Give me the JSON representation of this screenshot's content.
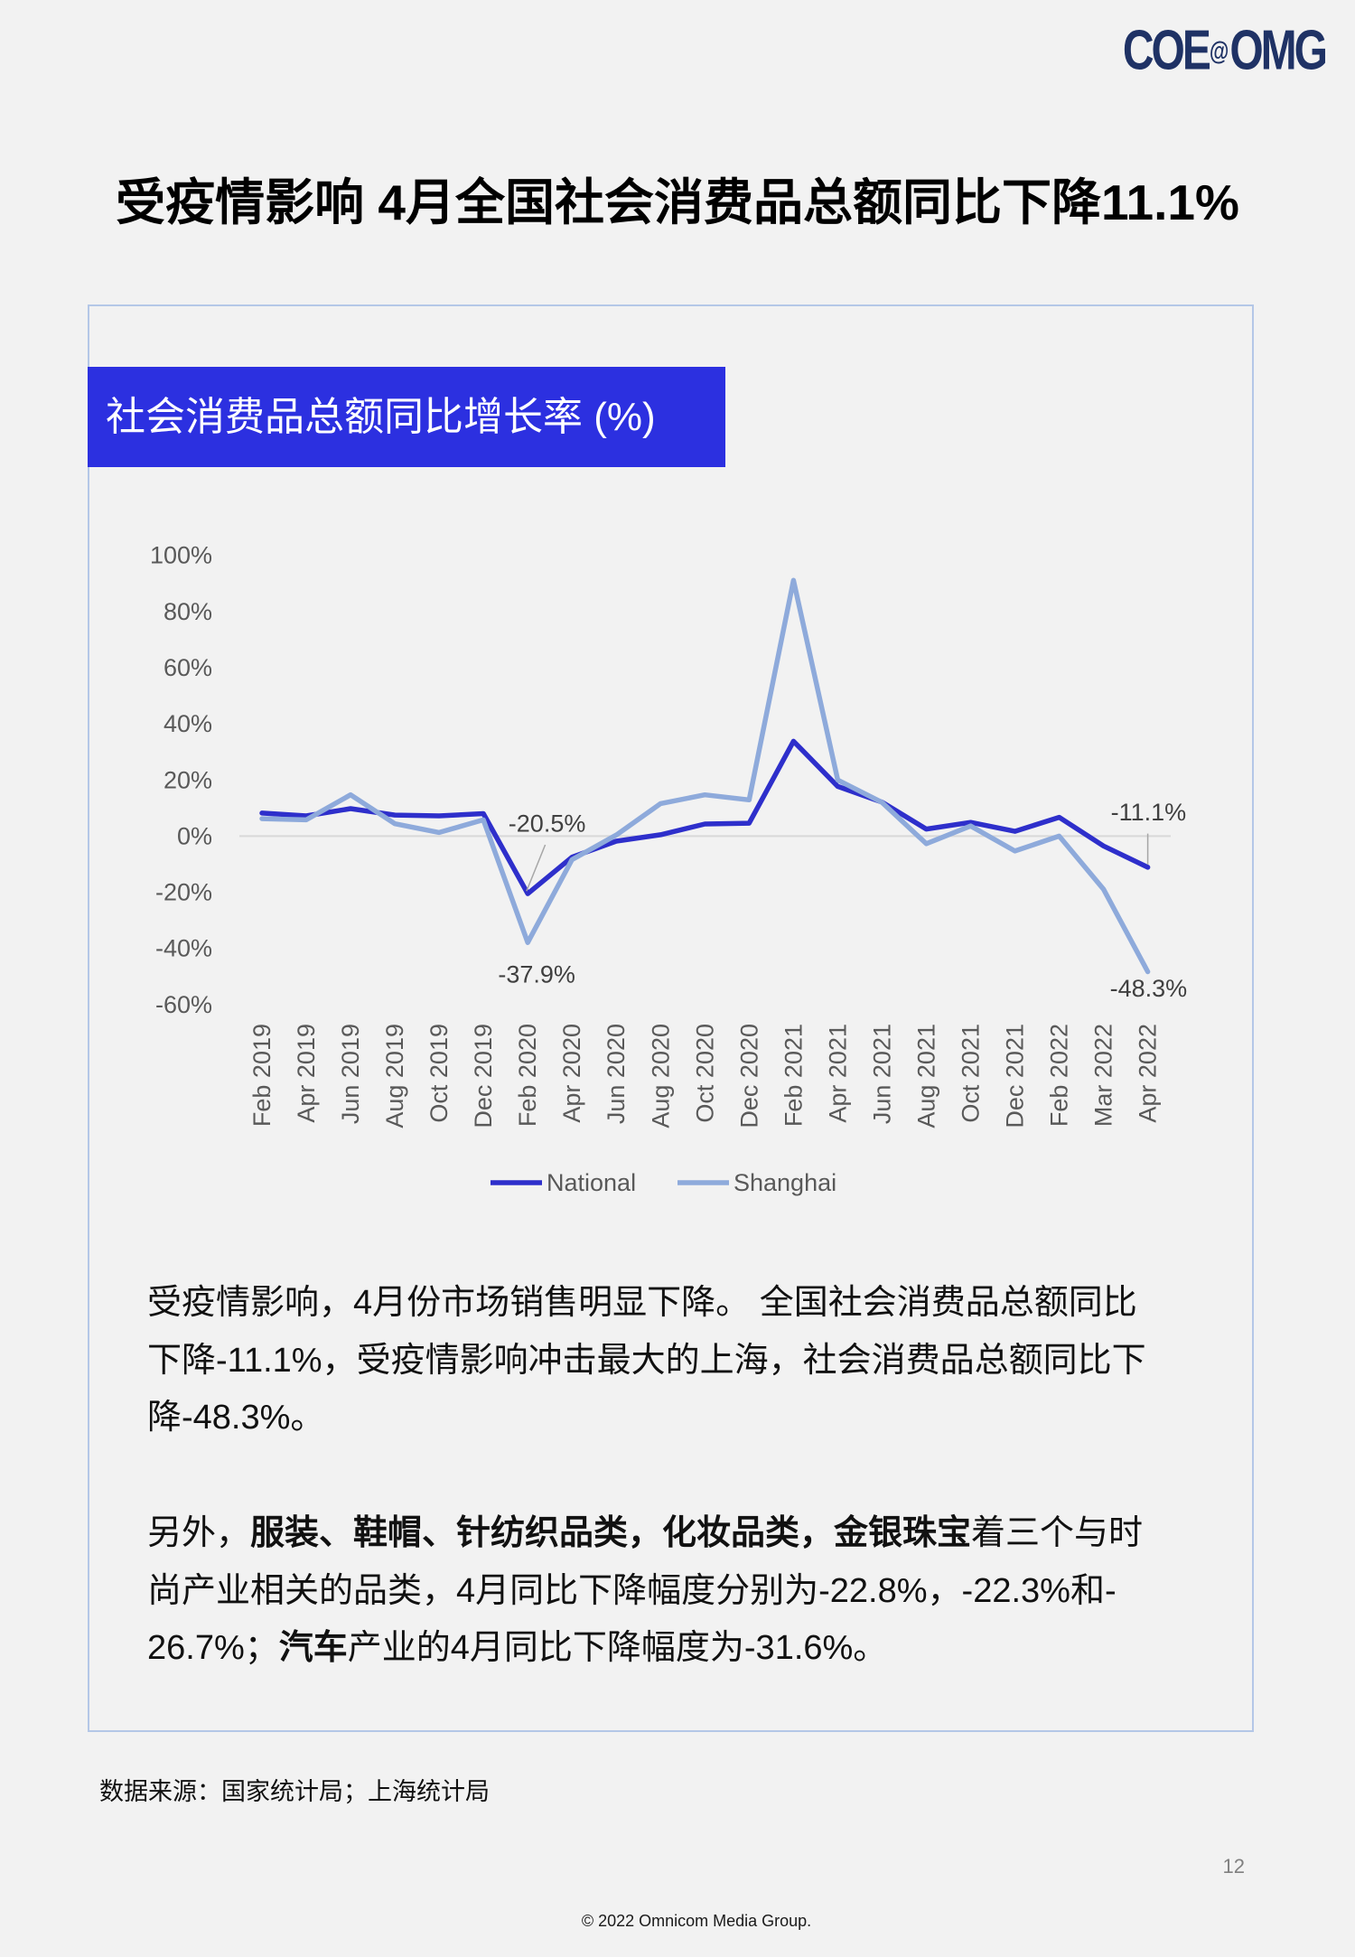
{
  "logo": {
    "left": "COE",
    "at": "@",
    "right": "OMG",
    "color": "#1f3265"
  },
  "title": "受疫情影响 4月全国社会消费品总额同比下降11.1%",
  "card": {
    "header_color": "#2c30e0",
    "border_color": "#b4c7e7"
  },
  "chart_data": {
    "type": "line",
    "title": "社会消费品总额同比增长率 (%)",
    "xlabel": "",
    "ylabel": "",
    "categories": [
      "Feb 2019",
      "Apr 2019",
      "Jun 2019",
      "Aug 2019",
      "Oct 2019",
      "Dec 2019",
      "Feb 2020",
      "Apr 2020",
      "Jun 2020",
      "Aug 2020",
      "Oct 2020",
      "Dec 2020",
      "Feb 2021",
      "Apr 2021",
      "Jun 2021",
      "Aug 2021",
      "Oct 2021",
      "Dec 2021",
      "Feb 2022",
      "Mar 2022",
      "Apr 2022"
    ],
    "series": [
      {
        "name": "National",
        "color": "#2e2fcb",
        "values": [
          8.2,
          7.2,
          9.8,
          7.5,
          7.2,
          8.0,
          -20.5,
          -7.5,
          -1.8,
          0.5,
          4.3,
          4.6,
          33.8,
          17.7,
          12.1,
          2.5,
          4.9,
          1.7,
          6.7,
          -3.5,
          -11.1
        ]
      },
      {
        "name": "Shanghai",
        "color": "#8eaadb",
        "values": [
          6.2,
          5.8,
          14.7,
          4.4,
          1.3,
          5.8,
          -37.9,
          -8.4,
          0.4,
          11.6,
          14.7,
          12.9,
          91.1,
          20.0,
          12.0,
          -2.7,
          3.6,
          -5.3,
          0.0,
          -18.9,
          -48.3
        ]
      }
    ],
    "ylim": [
      -60,
      100
    ],
    "yticks": [
      {
        "value": 100,
        "label": "100%"
      },
      {
        "value": 80,
        "label": "80%"
      },
      {
        "value": 60,
        "label": "60%"
      },
      {
        "value": 40,
        "label": "40%"
      },
      {
        "value": 20,
        "label": "20%"
      },
      {
        "value": 0,
        "label": "0%"
      },
      {
        "value": -20,
        "label": "-20%"
      },
      {
        "value": -40,
        "label": "-40%"
      },
      {
        "value": -60,
        "label": "-60%"
      }
    ],
    "grid": false,
    "zero_line": true,
    "legend": "bottom",
    "data_labels": [
      {
        "series_index": 0,
        "category_index": 6,
        "text": "-20.5%"
      },
      {
        "series_index": 1,
        "category_index": 6,
        "text": "-37.9%"
      },
      {
        "series_index": 0,
        "category_index": 20,
        "text": "-11.1%"
      },
      {
        "series_index": 1,
        "category_index": 20,
        "text": "-48.3%"
      }
    ]
  },
  "body": {
    "p1": [
      "受疫情影响，4月份市场销售明显下降。 全国社会消费品总额同比",
      "下降-11.1%，受疫情影响冲击最大的上海，社会消费品总额同比下",
      "降-48.3%。"
    ],
    "p2": {
      "l1": [
        "另外，",
        "服装、鞋帽、针纺织品类，化妆品类，金银珠宝",
        "着三个与时"
      ],
      "l2": "尚产业相关的品类，4月同比下降幅度分别为-22.8%，-22.3%和-",
      "l3": [
        "26.7%；",
        "汽车",
        "产业的4月同比下降幅度为-31.6%。"
      ]
    }
  },
  "source": "数据来源：国家统计局；上海统计局",
  "page_number": "12",
  "copyright": "© 2022 Omnicom Media Group."
}
